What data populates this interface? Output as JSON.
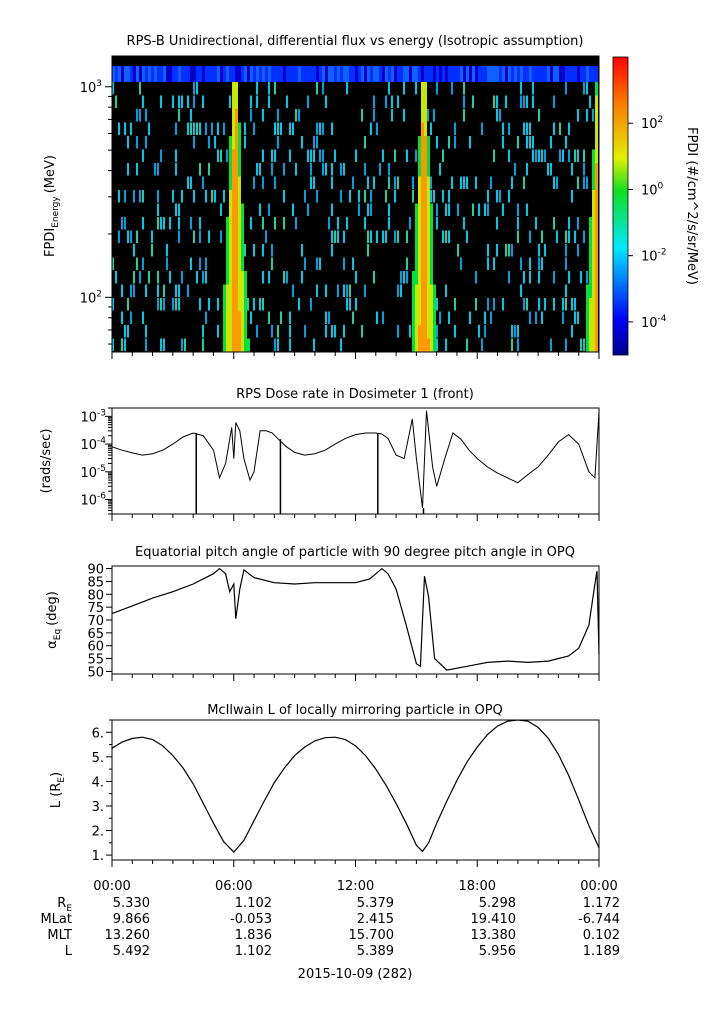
{
  "chart_data": [
    {
      "type": "heatmap",
      "title": "RPS-B  Unidirectional, differential flux vs energy (Isotropic assumption)",
      "ylabel_main": "FPDI",
      "ylabel_sub": "Energy",
      "ylabel_unit": "(MeV)",
      "yscale": "log",
      "ylim": [
        55,
        1400
      ],
      "yticks": [
        {
          "base": "10",
          "exp": "3",
          "value": 1000
        },
        {
          "base": "10",
          "exp": "2",
          "value": 100
        }
      ],
      "colorbar": {
        "label": "FPDI (#/cm^2/s/sr/MeV)",
        "scale": "log",
        "range": [
          1e-05,
          10000
        ],
        "ticks": [
          {
            "base": "10",
            "exp": "2",
            "value": 100
          },
          {
            "base": "10",
            "exp": "0",
            "value": 1
          },
          {
            "base": "10",
            "exp": "-2",
            "value": 0.01
          },
          {
            "base": "10",
            "exp": "-4",
            "value": 0.0001
          }
        ]
      },
      "bright_bands_hours": [
        6.0,
        15.3,
        23.9
      ],
      "colors": {
        "background": "#000000",
        "noise": "#00c8e8",
        "band_core": "#ff9900",
        "band_edge": "#00e040"
      }
    },
    {
      "type": "line",
      "title": "RPS  Dose rate in Dosimeter 1 (front)",
      "ylabel": "(rads/sec)",
      "yscale": "log",
      "ylim": [
        3e-07,
        0.002
      ],
      "yticks": [
        {
          "base": "10",
          "exp": "-3",
          "value": 0.001
        },
        {
          "base": "10",
          "exp": "-4",
          "value": 0.0001
        },
        {
          "base": "10",
          "exp": "-5",
          "value": 1e-05
        },
        {
          "base": "10",
          "exp": "-6",
          "value": 1e-06
        }
      ],
      "x_hours": [
        0,
        0.5,
        1,
        1.5,
        2,
        2.5,
        3,
        3.5,
        4,
        4.5,
        5,
        5.3,
        5.6,
        5.9,
        6.0,
        6.1,
        6.3,
        6.5,
        6.8,
        7.0,
        7.3,
        7.6,
        7.9,
        8.2,
        8.6,
        9,
        9.5,
        10,
        10.5,
        11,
        11.5,
        12,
        12.5,
        13,
        13.3,
        13.6,
        14.0,
        14.4,
        14.8,
        15.0,
        15.3,
        15.5,
        15.8,
        16.0,
        16.4,
        16.8,
        17.2,
        17.6,
        18.0,
        18.5,
        19.0,
        19.5,
        20.0,
        20.5,
        21.0,
        21.5,
        22.0,
        22.5,
        23.0,
        23.5,
        23.8,
        24.0
      ],
      "y_values": [
        8e-05,
        6e-05,
        4.8e-05,
        4e-05,
        4.5e-05,
        6e-05,
        0.0001,
        0.00018,
        0.00025,
        0.0002,
        6e-05,
        6e-06,
        2e-05,
        0.0004,
        3e-05,
        0.0006,
        0.0003,
        3e-05,
        5e-06,
        1e-05,
        0.0003,
        0.0003,
        0.00025,
        0.00015,
        8e-05,
        5e-05,
        4e-05,
        4.5e-05,
        6e-05,
        0.0001,
        0.00016,
        0.00022,
        0.00025,
        0.00025,
        0.00023,
        0.00016,
        4e-05,
        3e-05,
        0.0008,
        3e-05,
        5e-07,
        0.0016,
        1.5e-05,
        3e-06,
        3e-05,
        0.00025,
        0.00015,
        6e-05,
        3e-05,
        1.5e-05,
        9e-06,
        6e-06,
        4e-06,
        8e-06,
        1.5e-05,
        4e-05,
        0.00012,
        0.00022,
        0.0001,
        1e-05,
        6e-06,
        0.0015
      ],
      "spikes_hours": [
        4.15,
        8.3,
        13.1,
        15.35
      ],
      "spike_floor": 3e-07
    },
    {
      "type": "line",
      "title": "Equatorial pitch angle of particle with 90 degree pitch angle in OPQ",
      "ylabel_main": "α",
      "ylabel_sub": "Eq",
      "ylabel_unit": "(deg)",
      "ylim": [
        49,
        91
      ],
      "yticks": [
        "90",
        "85",
        "80",
        "75",
        "70",
        "65",
        "60",
        "55",
        "50"
      ],
      "ytick_values": [
        90,
        85,
        80,
        75,
        70,
        65,
        60,
        55,
        50
      ],
      "x_hours": [
        0,
        1,
        2,
        3,
        4,
        5,
        5.3,
        5.6,
        5.8,
        6.0,
        6.1,
        6.3,
        6.5,
        7,
        8,
        9,
        10,
        11,
        12,
        12.7,
        13.3,
        13.6,
        14,
        14.5,
        15.0,
        15.2,
        15.4,
        15.6,
        15.9,
        16.5,
        17.5,
        18.5,
        19.5,
        20.5,
        21.5,
        22.5,
        23.0,
        23.5,
        23.8,
        23.9,
        24.0
      ],
      "y_values": [
        72.5,
        75.5,
        78.5,
        81,
        84,
        88,
        90,
        88,
        81,
        84,
        70.5,
        82,
        89.5,
        86.5,
        84.5,
        84,
        84.5,
        84.5,
        84.5,
        86,
        90,
        88,
        82,
        68,
        53,
        52,
        87,
        79,
        55,
        50.5,
        52,
        53.5,
        54,
        53.5,
        54,
        56,
        59,
        68,
        84,
        89,
        56.5
      ]
    },
    {
      "type": "line",
      "title": "McIlwain L of locally mirroring particle in OPQ",
      "ylabel_main": "L (R",
      "ylabel_sub": "E",
      "ylabel_unit": ")",
      "ylim": [
        0.8,
        6.5
      ],
      "yticks": [
        "6.",
        "5.",
        "4.",
        "3.",
        "2.",
        "1."
      ],
      "ytick_values": [
        6,
        5,
        4,
        3,
        2,
        1
      ],
      "x_hours": [
        0,
        0.5,
        1,
        1.5,
        2,
        2.5,
        3,
        3.5,
        4,
        4.5,
        5,
        5.5,
        6,
        6.5,
        7,
        7.5,
        8,
        8.5,
        9,
        9.5,
        10,
        10.5,
        11,
        11.5,
        12,
        12.5,
        13,
        13.5,
        14,
        14.5,
        15,
        15.3,
        15.6,
        16,
        16.5,
        17,
        17.5,
        18,
        18.5,
        19,
        19.5,
        20,
        20.5,
        21,
        21.5,
        22,
        22.5,
        23,
        23.5,
        24
      ],
      "y_values": [
        5.35,
        5.6,
        5.75,
        5.8,
        5.7,
        5.45,
        5.05,
        4.55,
        3.9,
        3.1,
        2.3,
        1.55,
        1.12,
        1.6,
        2.4,
        3.2,
        3.95,
        4.55,
        5.05,
        5.4,
        5.65,
        5.78,
        5.8,
        5.7,
        5.45,
        5.05,
        4.5,
        3.85,
        3.1,
        2.3,
        1.4,
        1.15,
        1.5,
        2.3,
        3.2,
        4.05,
        4.8,
        5.4,
        5.9,
        6.25,
        6.45,
        6.5,
        6.45,
        6.2,
        5.75,
        5.1,
        4.25,
        3.25,
        2.2,
        1.3
      ]
    }
  ],
  "x_axis": {
    "range_hours": [
      0,
      24
    ],
    "ticks": [
      "00:00",
      "06:00",
      "12:00",
      "18:00",
      "00:00"
    ],
    "date_label": "2015-10-09 (282)"
  },
  "ephemeris": {
    "rows": [
      {
        "label": "R",
        "label_sub": "E",
        "values": [
          "5.330",
          "1.102",
          "5.379",
          "5.298",
          "1.172"
        ]
      },
      {
        "label": "MLat",
        "label_sub": "",
        "values": [
          "9.866",
          "-0.053",
          "2.415",
          "19.410",
          "-6.744"
        ]
      },
      {
        "label": "MLT",
        "label_sub": "",
        "values": [
          "13.260",
          "1.836",
          "15.700",
          "13.380",
          "0.102"
        ]
      },
      {
        "label": "L",
        "label_sub": "",
        "values": [
          "5.492",
          "1.102",
          "5.389",
          "5.956",
          "1.189"
        ]
      }
    ]
  }
}
